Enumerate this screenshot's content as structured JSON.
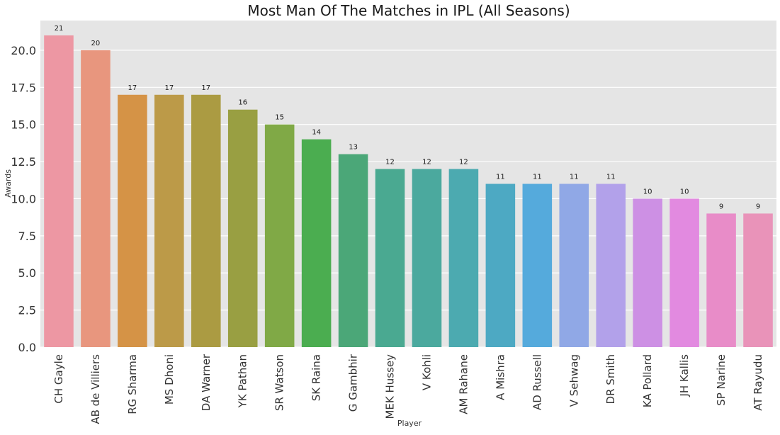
{
  "chart_data": {
    "type": "bar",
    "title": "Most Man Of The Matches in IPL (All Seasons)",
    "xlabel": "Player",
    "ylabel": "Awards",
    "categories": [
      "CH Gayle",
      "AB de Villiers",
      "RG Sharma",
      "MS Dhoni",
      "DA Warner",
      "YK Pathan",
      "SR Watson",
      "SK Raina",
      "G Gambhir",
      "MEK Hussey",
      "V Kohli",
      "AM Rahane",
      "A Mishra",
      "AD Russell",
      "V Sehwag",
      "DR Smith",
      "KA Pollard",
      "JH Kallis",
      "SP Narine",
      "AT Rayudu"
    ],
    "values": [
      21,
      20,
      17,
      17,
      17,
      16,
      15,
      14,
      13,
      12,
      12,
      12,
      11,
      11,
      11,
      11,
      10,
      10,
      9,
      9
    ],
    "ylim": [
      0,
      22
    ],
    "yticks": [
      "0.0",
      "2.5",
      "5.0",
      "7.5",
      "10.0",
      "12.5",
      "15.0",
      "17.5",
      "20.0"
    ],
    "grid": true,
    "colors": [
      "#ed97a3",
      "#e8967e",
      "#d59346",
      "#bc9a48",
      "#ab9b42",
      "#999f42",
      "#80a946",
      "#4bad50",
      "#4ba778",
      "#4aa991",
      "#4ba99e",
      "#4caab0",
      "#4da9c3",
      "#55aadc",
      "#90a8e6",
      "#b2a1ea",
      "#cd90e4",
      "#e28ae0",
      "#e88cc8",
      "#e993b9"
    ],
    "background": "#e5e5e5"
  }
}
